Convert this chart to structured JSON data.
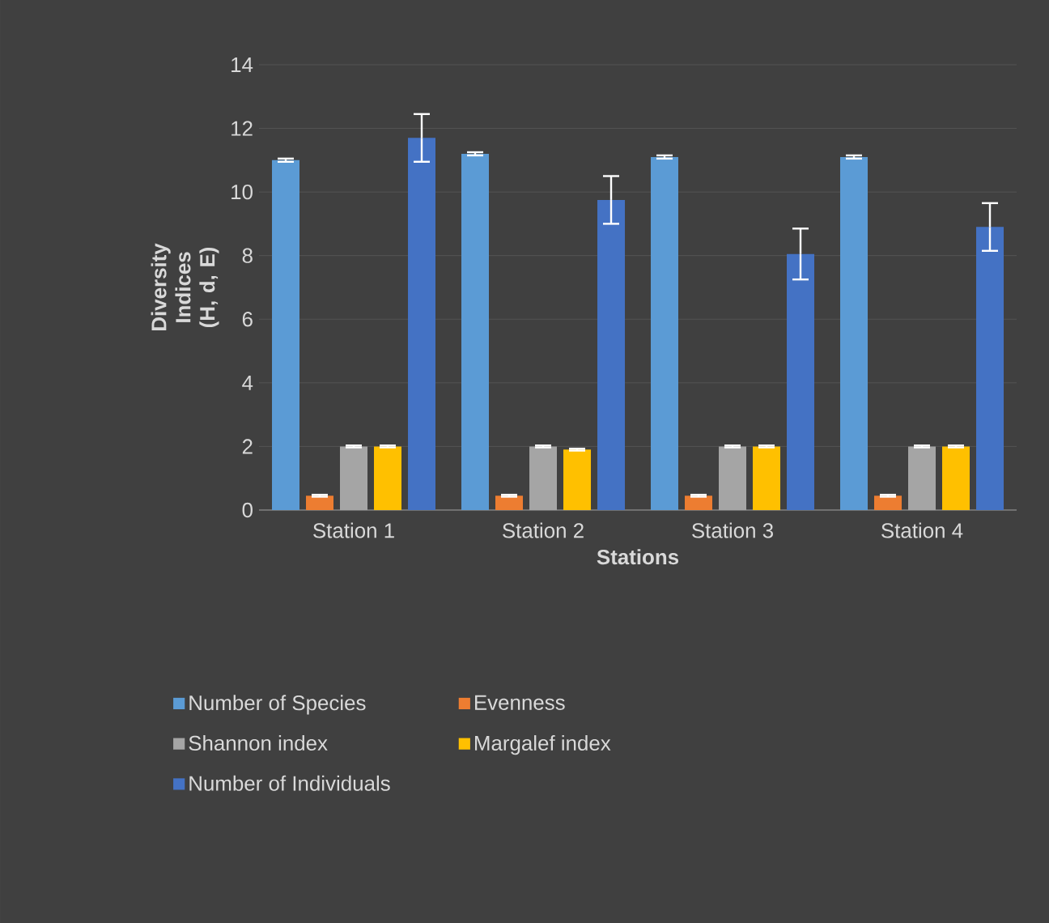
{
  "chart_data": {
    "type": "bar",
    "xlabel": "Stations",
    "ylabel": "Diversity Indices (H, d, E)",
    "categories": [
      "Station 1",
      "Station 2",
      "Station 3",
      "Station 4"
    ],
    "series": [
      {
        "name": "Number of Species",
        "color": "#5b9bd5",
        "values": [
          11.0,
          11.2,
          11.1,
          11.1
        ],
        "errors": [
          0.05,
          0.05,
          0.05,
          0.05
        ]
      },
      {
        "name": "Evenness",
        "color": "#ed7d31",
        "values": [
          0.45,
          0.45,
          0.45,
          0.45
        ],
        "errors": [
          0.03,
          0.03,
          0.03,
          0.03
        ]
      },
      {
        "name": "Shannon index",
        "color": "#a5a5a5",
        "values": [
          2.0,
          2.0,
          2.0,
          2.0
        ],
        "errors": [
          0.03,
          0.03,
          0.03,
          0.03
        ]
      },
      {
        "name": "Margalef index",
        "color": "#ffc000",
        "values": [
          2.0,
          1.9,
          2.0,
          2.0
        ],
        "errors": [
          0.03,
          0.03,
          0.03,
          0.03
        ]
      },
      {
        "name": "Number of Individuals",
        "color": "#4472c4",
        "values": [
          11.7,
          9.75,
          8.05,
          8.9
        ],
        "errors": [
          0.75,
          0.75,
          0.8,
          0.75
        ]
      }
    ],
    "ylim": [
      0,
      14
    ],
    "yticks": [
      0,
      2,
      4,
      6,
      8,
      10,
      12,
      14
    ],
    "grid": "y",
    "legend": "bottom"
  }
}
